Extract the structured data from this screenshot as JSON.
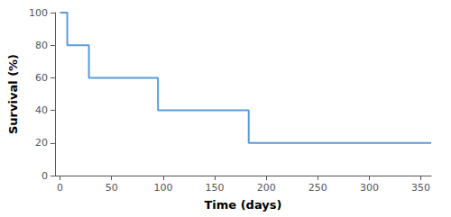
{
  "chart_data": {
    "type": "line",
    "x": [
      0,
      7,
      7,
      28,
      28,
      95,
      95,
      183,
      183,
      360
    ],
    "values": [
      100,
      100,
      80,
      80,
      60,
      60,
      40,
      40,
      20,
      20
    ],
    "color": "#5b9bd5",
    "xlabel": "Time (days)",
    "ylabel": "Survival (%)",
    "xlim": [
      -5,
      360
    ],
    "xticks": [
      0,
      50,
      100,
      150,
      200,
      250,
      300,
      350
    ],
    "ylim": [
      0,
      100
    ],
    "yticks": [
      0,
      20,
      40,
      60,
      80,
      100
    ],
    "grid": false
  }
}
